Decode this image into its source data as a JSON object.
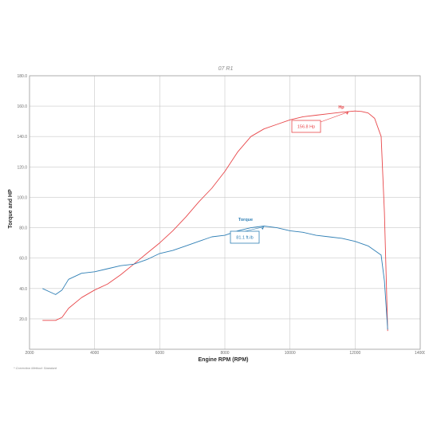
{
  "chart_data": {
    "type": "line",
    "title": "07 R1",
    "xlabel": "Engine RPM (RPM)",
    "ylabel": "Torque and HP",
    "xlim": [
      2000,
      14000
    ],
    "ylim": [
      0,
      180
    ],
    "xticks": [
      "2000",
      "4000",
      "6000",
      "8000",
      "10000",
      "12000",
      "14000"
    ],
    "yticks": [
      "180.0",
      "160.0",
      "140.0",
      "120.0",
      "100.0",
      "80.0",
      "60.0",
      "40.0",
      "20.0"
    ],
    "grid": true,
    "footnote": "* Correction Method: Standard",
    "colors": {
      "hp": "#e8474a",
      "torque": "#2f7fb5"
    },
    "series": [
      {
        "name": "Hp",
        "color": "#e8474a",
        "x": [
          2400,
          2800,
          3000,
          3200,
          3600,
          4000,
          4400,
          4800,
          5200,
          5600,
          6000,
          6400,
          6800,
          7200,
          7600,
          8000,
          8400,
          8800,
          9200,
          9600,
          10000,
          10400,
          10800,
          11200,
          11600,
          12000,
          12200,
          12400,
          12600,
          12800,
          12900,
          13000
        ],
        "y": [
          19,
          19,
          21,
          27,
          34,
          39,
          43,
          49,
          56,
          63,
          70,
          78,
          87,
          97,
          106,
          117,
          130,
          140,
          145,
          148,
          151,
          153,
          154,
          155,
          156,
          156.8,
          156.5,
          155.5,
          152,
          140,
          90,
          12
        ]
      },
      {
        "name": "Torque",
        "color": "#2f7fb5",
        "x": [
          2400,
          2600,
          2800,
          3000,
          3200,
          3600,
          4000,
          4400,
          4800,
          5200,
          5600,
          6000,
          6400,
          6800,
          7200,
          7600,
          8000,
          8400,
          8800,
          9200,
          9600,
          10000,
          10400,
          10800,
          11200,
          11600,
          12000,
          12400,
          12800,
          12900,
          13000
        ],
        "y": [
          40,
          38,
          36,
          39,
          46,
          50,
          51,
          53,
          55,
          56,
          59,
          63,
          65,
          68,
          71,
          74,
          75,
          78,
          80,
          81.1,
          80,
          78,
          77,
          75,
          74,
          73,
          71,
          68,
          62,
          45,
          13
        ]
      }
    ],
    "annotations": [
      {
        "label": "Hp",
        "value": "156.8 Hp",
        "series": "Hp",
        "x": 11800,
        "y": 156.8
      },
      {
        "label": "Torque",
        "value": "81.1 ft-lb",
        "series": "Torque",
        "x": 9200,
        "y": 81.1
      }
    ]
  }
}
